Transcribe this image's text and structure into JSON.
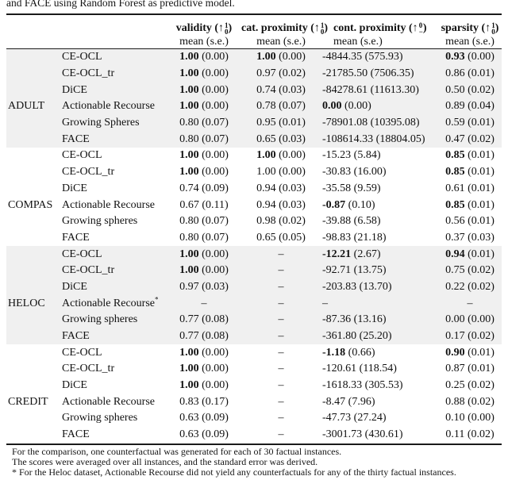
{
  "caption_top": "and FACE using Random Forest as predictive model.",
  "columns": [
    {
      "label": "validity",
      "arrow": "↑",
      "sup": "1",
      "sub": "0",
      "sub_label": "mean (s.e.)",
      "align": "center"
    },
    {
      "label": "cat. proximity",
      "arrow": "↑",
      "sup": "1",
      "sub": "0",
      "sub_label": "mean (s.e.)",
      "align": "center"
    },
    {
      "label": "cont. proximity",
      "arrow": "↑",
      "sup": "0",
      "sub": "−",
      "sub_label": "mean (s.e.)",
      "align": "left"
    },
    {
      "label": "sparsity",
      "arrow": "↑",
      "sup": "1",
      "sub": "0",
      "sub_label": "mean (s.e.)",
      "align": "center"
    }
  ],
  "groups": [
    {
      "dataset": "ADULT",
      "shaded": true,
      "rows": [
        {
          "method": "CE-OCL",
          "cells": [
            {
              "m": "1.00",
              "s": "0.00",
              "b": true
            },
            {
              "m": "1.00",
              "s": "0.00",
              "b": true
            },
            {
              "m": "-4844.35",
              "s": "575.93"
            },
            {
              "m": "0.93",
              "s": "0.00",
              "b": true
            }
          ]
        },
        {
          "method": "CE-OCL_tr",
          "cells": [
            {
              "m": "1.00",
              "s": "0.00",
              "b": true
            },
            {
              "m": "0.97",
              "s": "0.02"
            },
            {
              "m": "-21785.50",
              "s": "7506.35"
            },
            {
              "m": "0.86",
              "s": "0.01"
            }
          ]
        },
        {
          "method": "DiCE",
          "cells": [
            {
              "m": "1.00",
              "s": "0.00",
              "b": true
            },
            {
              "m": "0.74",
              "s": "0.03"
            },
            {
              "m": "-84278.61",
              "s": "11613.30"
            },
            {
              "m": "0.50",
              "s": "0.02"
            }
          ]
        },
        {
          "method": "Actionable Recourse",
          "cells": [
            {
              "m": "1.00",
              "s": "0.00",
              "b": true
            },
            {
              "m": "0.78",
              "s": "0.07"
            },
            {
              "m": "0.00",
              "s": "0.00",
              "b": true
            },
            {
              "m": "0.89",
              "s": "0.04"
            }
          ]
        },
        {
          "method": "Growing Spheres",
          "cells": [
            {
              "m": "0.80",
              "s": "0.07"
            },
            {
              "m": "0.95",
              "s": "0.01"
            },
            {
              "m": "-78901.08",
              "s": "10395.08"
            },
            {
              "m": "0.59",
              "s": "0.01"
            }
          ]
        },
        {
          "method": "FACE",
          "cells": [
            {
              "m": "0.80",
              "s": "0.07"
            },
            {
              "m": "0.65",
              "s": "0.03"
            },
            {
              "m": "-108614.33",
              "s": "18804.05"
            },
            {
              "m": "0.47",
              "s": "0.02"
            }
          ]
        }
      ]
    },
    {
      "dataset": "COMPAS",
      "shaded": false,
      "rows": [
        {
          "method": "CE-OCL",
          "cells": [
            {
              "m": "1.00",
              "s": "0.00",
              "b": true
            },
            {
              "m": "1.00",
              "s": "0.00",
              "b": true
            },
            {
              "m": "-15.23",
              "s": "5.84"
            },
            {
              "m": "0.85",
              "s": "0.01",
              "b": true
            }
          ]
        },
        {
          "method": "CE-OCL_tr",
          "cells": [
            {
              "m": "1.00",
              "s": "0.00",
              "b": true
            },
            {
              "m": "1.00",
              "s": "0.00"
            },
            {
              "m": "-30.83",
              "s": "16.00"
            },
            {
              "m": "0.85",
              "s": "0.01",
              "b": true
            }
          ]
        },
        {
          "method": "DiCE",
          "cells": [
            {
              "m": "0.74",
              "s": "0.09"
            },
            {
              "m": "0.94",
              "s": "0.03"
            },
            {
              "m": "-35.58",
              "s": "9.59"
            },
            {
              "m": "0.61",
              "s": "0.01"
            }
          ]
        },
        {
          "method": "Actionable Recourse",
          "cells": [
            {
              "m": "0.67",
              "s": "0.11"
            },
            {
              "m": "0.94",
              "s": "0.03"
            },
            {
              "m": "-0.87",
              "s": "0.10",
              "b": true
            },
            {
              "m": "0.85",
              "s": "0.01",
              "b": true
            }
          ]
        },
        {
          "method": "Growing spheres",
          "cells": [
            {
              "m": "0.80",
              "s": "0.07"
            },
            {
              "m": "0.98",
              "s": "0.02"
            },
            {
              "m": "-39.88",
              "s": "6.58"
            },
            {
              "m": "0.56",
              "s": "0.01"
            }
          ]
        },
        {
          "method": "FACE",
          "cells": [
            {
              "m": "0.80",
              "s": "0.07"
            },
            {
              "m": "0.65",
              "s": "0.05"
            },
            {
              "m": "-98.83",
              "s": "21.18"
            },
            {
              "m": "0.37",
              "s": "0.03"
            }
          ]
        }
      ]
    },
    {
      "dataset": "HELOC",
      "shaded": true,
      "rows": [
        {
          "method": "CE-OCL",
          "cells": [
            {
              "m": "1.00",
              "s": "0.00",
              "b": true
            },
            "–",
            {
              "m": "-12.21",
              "s": "2.67",
              "b": true
            },
            {
              "m": "0.94",
              "s": "0.01",
              "b": true
            }
          ]
        },
        {
          "method": "CE-OCL_tr",
          "cells": [
            {
              "m": "1.00",
              "s": "0.00",
              "b": true
            },
            "–",
            {
              "m": "-92.71",
              "s": "13.75"
            },
            {
              "m": "0.75",
              "s": "0.02"
            }
          ]
        },
        {
          "method": "DiCE",
          "cells": [
            {
              "m": "0.97",
              "s": "0.03"
            },
            "–",
            {
              "m": "-203.83",
              "s": "13.70"
            },
            {
              "m": "0.22",
              "s": "0.02"
            }
          ]
        },
        {
          "method": "Actionable Recourse*",
          "cells": [
            "–",
            "–",
            "–",
            "–"
          ]
        },
        {
          "method": "Growing spheres",
          "cells": [
            {
              "m": "0.77",
              "s": "0.08"
            },
            "–",
            {
              "m": "-87.36",
              "s": "13.16"
            },
            {
              "m": "0.00",
              "s": "0.00"
            }
          ]
        },
        {
          "method": "FACE",
          "cells": [
            {
              "m": "0.77",
              "s": "0.08"
            },
            "–",
            {
              "m": "-361.80",
              "s": "25.20"
            },
            {
              "m": "0.17",
              "s": "0.02"
            }
          ]
        }
      ]
    },
    {
      "dataset": "CREDIT",
      "shaded": false,
      "rows": [
        {
          "method": "CE-OCL",
          "cells": [
            {
              "m": "1.00",
              "s": "0.00",
              "b": true
            },
            "–",
            {
              "m": "-1.18",
              "s": "0.66",
              "b": true
            },
            {
              "m": "0.90",
              "s": "0.01",
              "b": true
            }
          ]
        },
        {
          "method": "CE-OCL_tr",
          "cells": [
            {
              "m": "1.00",
              "s": "0.00",
              "b": true
            },
            "–",
            {
              "m": "-120.61",
              "s": "118.54"
            },
            {
              "m": "0.87",
              "s": "0.01"
            }
          ]
        },
        {
          "method": "DiCE",
          "cells": [
            {
              "m": "1.00",
              "s": "0.00",
              "b": true
            },
            "–",
            {
              "m": "-1618.33",
              "s": "305.53"
            },
            {
              "m": "0.25",
              "s": "0.02"
            }
          ]
        },
        {
          "method": "Actionable Recourse",
          "cells": [
            {
              "m": "0.83",
              "s": "0.17"
            },
            "–",
            {
              "m": "-8.47",
              "s": "7.96"
            },
            {
              "m": "0.88",
              "s": "0.02"
            }
          ]
        },
        {
          "method": "Growing spheres",
          "cells": [
            {
              "m": "0.63",
              "s": "0.09"
            },
            "–",
            {
              "m": "-47.73",
              "s": "27.24"
            },
            {
              "m": "0.10",
              "s": "0.00"
            }
          ]
        },
        {
          "method": "FACE",
          "cells": [
            {
              "m": "0.63",
              "s": "0.09"
            },
            "–",
            {
              "m": "-3001.73",
              "s": "430.61"
            },
            {
              "m": "0.11",
              "s": "0.02"
            }
          ]
        }
      ]
    }
  ],
  "footnotes": [
    "For the comparison, one counterfactual was generated for each of 30 factual instances.",
    "The scores were averaged over all instances, and the standard error was derived.",
    "* For the Heloc dataset, Actionable Recourse did not yield any counterfactuals for any of the thirty factual instances."
  ],
  "colors": {
    "group_shade": "#f0f0f0",
    "rule": "#1a1a1a",
    "text": "#111111"
  }
}
